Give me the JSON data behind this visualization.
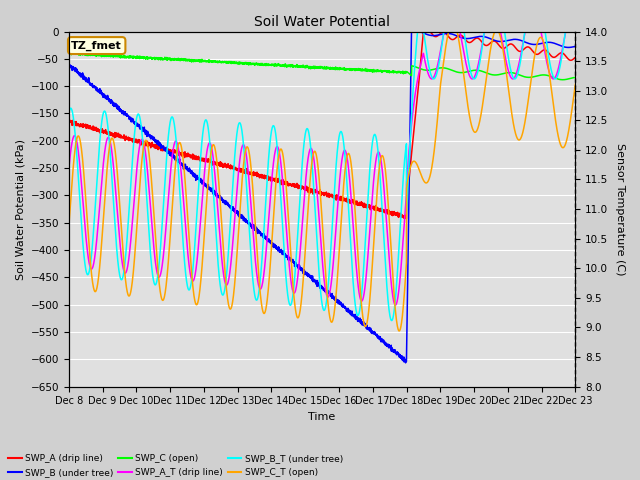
{
  "title": "Soil Water Potential",
  "ylabel_left": "Soil Water Potential (kPa)",
  "ylabel_right": "Sensor Temperature (C)",
  "xlabel": "Time",
  "ylim_left": [
    -650,
    0
  ],
  "ylim_right": [
    8.0,
    14.0
  ],
  "yticks_left": [
    0,
    -50,
    -100,
    -150,
    -200,
    -250,
    -300,
    -350,
    -400,
    -450,
    -500,
    -550,
    -600,
    -650
  ],
  "yticks_right": [
    8.0,
    8.5,
    9.0,
    9.5,
    10.0,
    10.5,
    11.0,
    11.5,
    12.0,
    12.5,
    13.0,
    13.5,
    14.0
  ],
  "xtick_labels": [
    "Dec 8",
    "Dec 9",
    "Dec 10",
    "Dec 11",
    "Dec 12",
    "Dec 13",
    "Dec 14",
    "Dec 15",
    "Dec 16",
    "Dec 17",
    "Dec 18",
    "Dec 19",
    "Dec 20",
    "Dec 21",
    "Dec 22",
    "Dec 23"
  ],
  "annotation_text": "TZ_fmet",
  "annotation_border_color": "#cc8800",
  "fig_bg_color": "#d0d0d0",
  "plot_bg_color": "#e0e0e0",
  "grid_color": "#f0f0f0",
  "legend_entries": [
    {
      "label": "SWP_A (drip line)",
      "color": "red"
    },
    {
      "label": "SWP_B (under tree)",
      "color": "blue"
    },
    {
      "label": "SWP_C (open)",
      "color": "green"
    },
    {
      "label": "SWP_A_T (drip line)",
      "color": "magenta"
    },
    {
      "label": "SWP_B_T (under tree)",
      "color": "cyan"
    },
    {
      "label": "SWP_C_T (open)",
      "color": "orange"
    }
  ],
  "figsize": [
    6.4,
    4.8
  ],
  "dpi": 100
}
